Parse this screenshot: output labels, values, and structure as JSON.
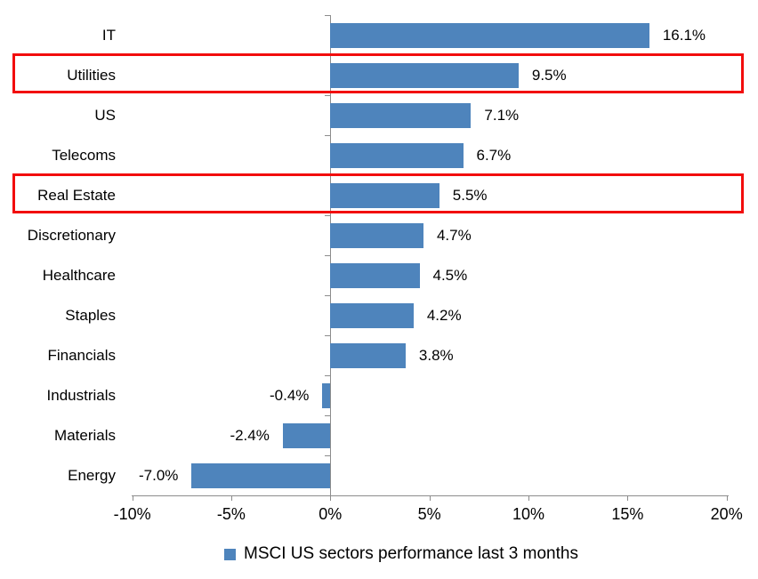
{
  "chart_data": {
    "type": "bar",
    "orientation": "horizontal",
    "title": "",
    "categories": [
      "IT",
      "Utilities",
      "US",
      "Telecoms",
      "Real Estate",
      "Discretionary",
      "Healthcare",
      "Staples",
      "Financials",
      "Industrials",
      "Materials",
      "Energy"
    ],
    "values": [
      16.1,
      9.5,
      7.1,
      6.7,
      5.5,
      4.7,
      4.5,
      4.2,
      3.8,
      -0.4,
      -2.4,
      -7.0
    ],
    "value_labels": [
      "16.1%",
      "9.5%",
      "7.1%",
      "6.7%",
      "5.5%",
      "4.7%",
      "4.5%",
      "4.2%",
      "3.8%",
      "-0.4%",
      "-2.4%",
      "-7.0%"
    ],
    "xlim": [
      -10,
      20
    ],
    "x_tick_values": [
      -10,
      -5,
      0,
      5,
      10,
      15,
      20
    ],
    "x_tick_labels": [
      "-10%",
      "-5%",
      "0%",
      "5%",
      "10%",
      "15%",
      "20%"
    ],
    "grid": false,
    "legend_position": "bottom",
    "legend_label": "MSCI US sectors performance last 3 months",
    "bar_color": "#4E84BC",
    "axis_color": "#8C8C8C",
    "highlight_color": "#F20D0D",
    "highlighted_categories": [
      "Utilities",
      "Real Estate"
    ]
  }
}
